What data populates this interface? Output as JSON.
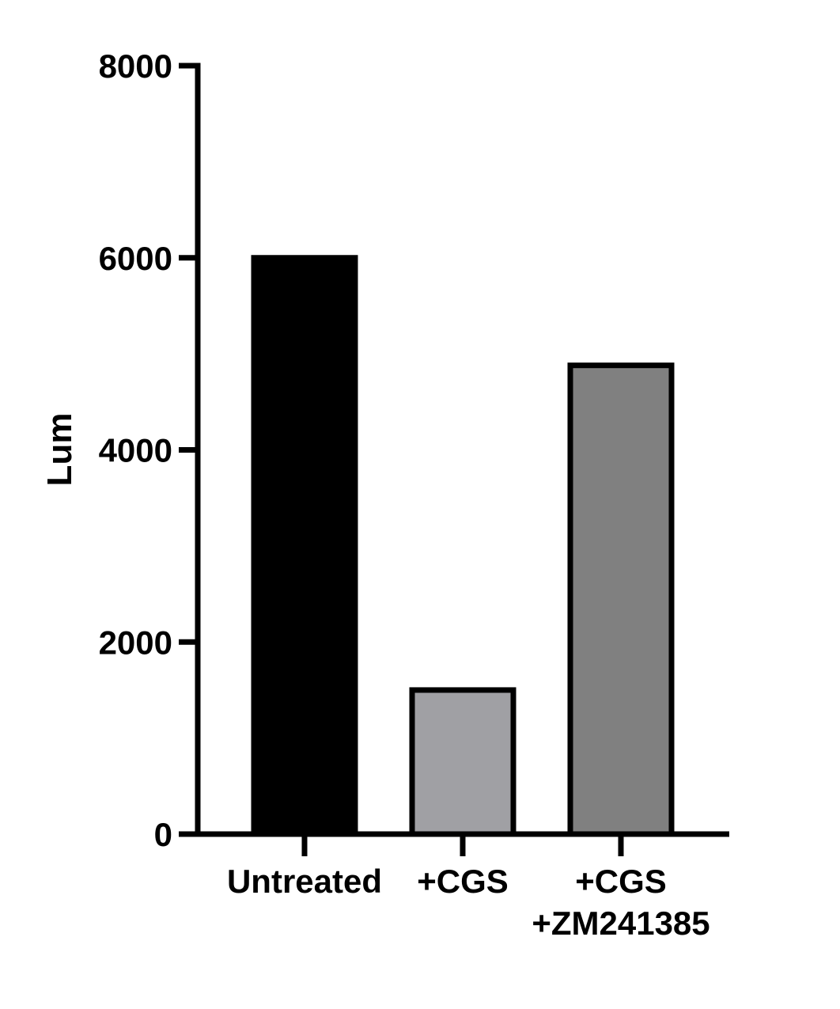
{
  "chart_data": {
    "type": "bar",
    "title": "",
    "xlabel": "",
    "ylabel": "Lum",
    "ylim": [
      0,
      8000
    ],
    "yticks": [
      0,
      2000,
      4000,
      6000,
      8000
    ],
    "grid": false,
    "categories": [
      {
        "label_lines": [
          "Untreated"
        ]
      },
      {
        "label_lines": [
          "+CGS"
        ]
      },
      {
        "label_lines": [
          "+CGS",
          "+ZM241385"
        ]
      }
    ],
    "values": [
      6000,
      1500,
      4880
    ],
    "bar_colors": [
      "#000000",
      "#a0a0a4",
      "#808080"
    ],
    "bar_edge_color": "#000000"
  }
}
